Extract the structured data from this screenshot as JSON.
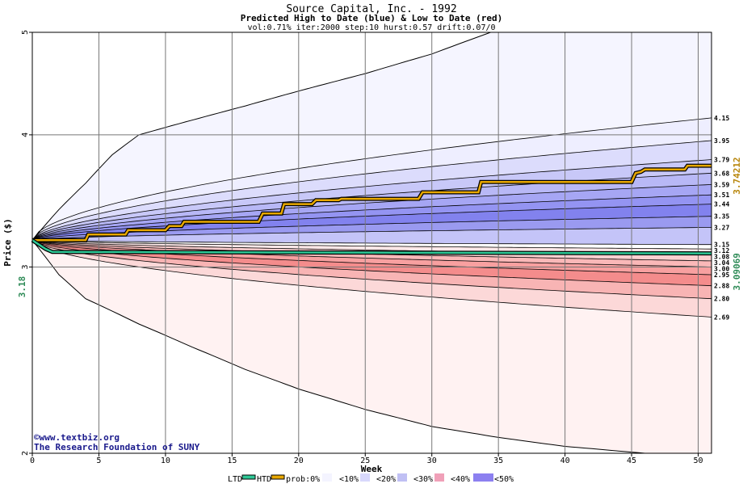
{
  "chart_data": {
    "type": "area",
    "title": "Source Capital, Inc. - 1992",
    "subtitle": "Predicted High to Date (blue) &  Low to Date (red)",
    "params": "vol:0.71% iter:2000 step:10 hurst:0.57 drift:0.07/0",
    "xlabel": "Week",
    "ylabel": "Price ($)",
    "xlim": [
      0,
      51
    ],
    "ylim": [
      2,
      5
    ],
    "y_scale": "log",
    "x_ticks": [
      0,
      5,
      10,
      15,
      20,
      25,
      30,
      35,
      40,
      45,
      50
    ],
    "y_ticks": [
      2,
      3,
      4,
      5
    ],
    "start_price": 3.18,
    "start_label": "3.18",
    "grid": true,
    "envelope": {
      "upper": [
        [
          0,
          3.18
        ],
        [
          2,
          3.4
        ],
        [
          4,
          3.6
        ],
        [
          6,
          3.83
        ],
        [
          8,
          4.0
        ],
        [
          12,
          4.13
        ],
        [
          16,
          4.26
        ],
        [
          20,
          4.4
        ],
        [
          25,
          4.57
        ],
        [
          30,
          4.77
        ],
        [
          35,
          5.03
        ]
      ],
      "lower": [
        [
          0,
          3.18
        ],
        [
          2,
          2.95
        ],
        [
          4,
          2.8
        ],
        [
          8,
          2.65
        ],
        [
          12,
          2.52
        ],
        [
          16,
          2.4
        ],
        [
          20,
          2.3
        ],
        [
          25,
          2.2
        ],
        [
          30,
          2.12
        ],
        [
          35,
          2.07
        ],
        [
          40,
          2.03
        ],
        [
          45,
          2.005
        ],
        [
          46,
          2.0
        ]
      ]
    },
    "high_bands": [
      {
        "label": "4.15",
        "end": 4.15
      },
      {
        "label": "3.95",
        "end": 3.95
      },
      {
        "label": "3.79",
        "end": 3.79
      },
      {
        "label": "3.68",
        "end": 3.68
      },
      {
        "label": "3.59",
        "end": 3.59
      },
      {
        "label": "3.51",
        "end": 3.51
      },
      {
        "label": "3.44",
        "end": 3.44
      },
      {
        "label": "3.35",
        "end": 3.35
      },
      {
        "label": "3.27",
        "end": 3.27
      },
      {
        "label": "3.15",
        "end": 3.15
      }
    ],
    "low_bands": [
      {
        "label": "3.12",
        "end": 3.12
      },
      {
        "label": "3.08",
        "end": 3.08
      },
      {
        "label": "3.04",
        "end": 3.04
      },
      {
        "label": "3.00",
        "end": 3.0
      },
      {
        "label": "2.95",
        "end": 2.95
      },
      {
        "label": "2.88",
        "end": 2.88
      },
      {
        "label": "2.80",
        "end": 2.8
      },
      {
        "label": "2.69",
        "end": 2.69
      }
    ],
    "series": [
      {
        "name": "HTD",
        "color": "#e8a800",
        "end_value": 3.74212,
        "end_label": "3.74212",
        "values": [
          [
            0,
            3.18
          ],
          [
            4,
            3.18
          ],
          [
            4.2,
            3.22
          ],
          [
            7,
            3.22
          ],
          [
            7.2,
            3.25
          ],
          [
            10,
            3.25
          ],
          [
            10.3,
            3.28
          ],
          [
            11.2,
            3.28
          ],
          [
            11.4,
            3.31
          ],
          [
            17,
            3.31
          ],
          [
            17.3,
            3.37
          ],
          [
            18.7,
            3.37
          ],
          [
            18.9,
            3.44
          ],
          [
            21,
            3.44
          ],
          [
            21.3,
            3.47
          ],
          [
            23,
            3.47
          ],
          [
            23.2,
            3.48
          ],
          [
            29,
            3.48
          ],
          [
            29.3,
            3.53
          ],
          [
            33.5,
            3.53
          ],
          [
            33.7,
            3.61
          ],
          [
            45,
            3.61
          ],
          [
            45.3,
            3.68
          ],
          [
            45.7,
            3.69
          ],
          [
            46,
            3.71
          ],
          [
            49,
            3.71
          ],
          [
            49.2,
            3.74
          ],
          [
            51,
            3.74
          ]
        ]
      },
      {
        "name": "LTD",
        "color": "#2ec896",
        "end_value": 3.09069,
        "end_label": "3.09069",
        "values": [
          [
            0,
            3.18
          ],
          [
            1,
            3.12
          ],
          [
            1.5,
            3.1
          ],
          [
            51,
            3.09
          ]
        ]
      }
    ],
    "legend": {
      "placement": "bottom",
      "items": [
        "LTD",
        "HTD",
        "prob:0%",
        "<10%",
        "<20%",
        "<30%",
        "<40%",
        "<50%"
      ],
      "swatch_colors": [
        "#2ec896",
        "#e8a800",
        "#ffffff",
        "#f4f4ff",
        "#d8d8fc",
        "#c0c0f4",
        "#f0a0b8",
        "#8c80f0"
      ]
    },
    "colors": {
      "high_bands": [
        "#eeeeff",
        "#dcdcfc",
        "#c8c8f8",
        "#b8b8f6",
        "#a6a6f4",
        "#9494f2",
        "#8282ee",
        "#9a9af0",
        "#c4c4f8"
      ],
      "low_bands": [
        "#fde8e8",
        "#fcd0d0",
        "#fab8b8",
        "#f8a0a0",
        "#f48c8c",
        "#f8b4b4",
        "#fcd8d8"
      ],
      "outer_high": "#f5f5ff",
      "outer_low": "#fff2f2"
    }
  },
  "credit": {
    "line1": "www.textbiz.org",
    "line2": "The Research Foundation of SUNY"
  }
}
